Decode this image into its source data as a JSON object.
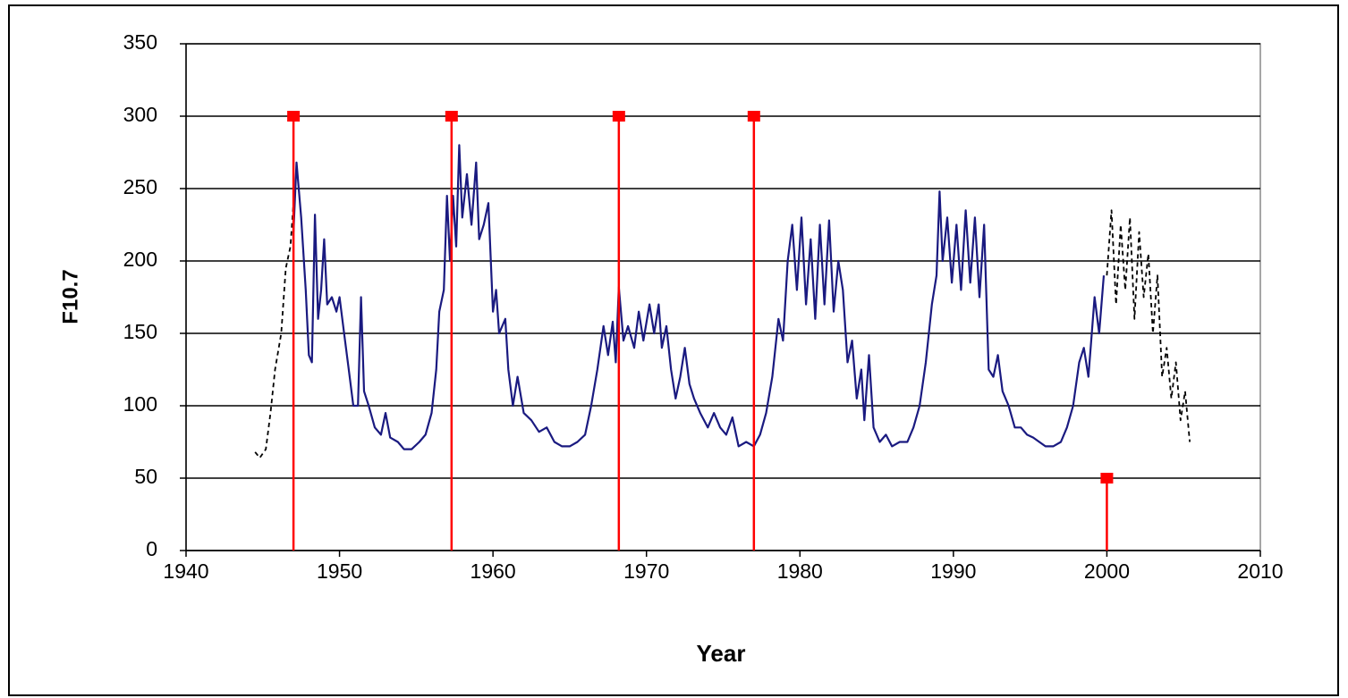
{
  "chart_data": {
    "type": "line",
    "xlabel": "Year",
    "ylabel": "F10.7",
    "xlim": [
      1940,
      2010
    ],
    "xticks": [
      1940,
      1950,
      1960,
      1970,
      1980,
      1990,
      2000,
      2010
    ],
    "ylim": [
      0,
      350
    ],
    "yticks": [
      0,
      50,
      100,
      150,
      200,
      250,
      300,
      350
    ],
    "grid": true,
    "series": [
      {
        "color": "#000000",
        "line_style": "dashed",
        "x": [
          1944.5,
          1944.8,
          1945.2,
          1945.5,
          1945.8,
          1946.2,
          1946.5,
          1946.8,
          1947.0
        ],
        "values": [
          68,
          64,
          70,
          95,
          125,
          150,
          195,
          210,
          240
        ]
      },
      {
        "color": "#1a1a80",
        "line_style": "solid",
        "x": [
          1947.0,
          1947.2,
          1947.5,
          1947.8,
          1948.0,
          1948.2,
          1948.4,
          1948.6,
          1948.8,
          1949.0,
          1949.2,
          1949.5,
          1949.8,
          1950.0,
          1950.3,
          1950.6,
          1950.9,
          1951.2,
          1951.4,
          1951.6,
          1951.9,
          1952.3,
          1952.7,
          1953.0,
          1953.3,
          1953.8,
          1954.2,
          1954.7,
          1955.2,
          1955.6,
          1956.0,
          1956.3,
          1956.5,
          1956.8,
          1957.0,
          1957.2,
          1957.4,
          1957.6,
          1957.8,
          1958.0,
          1958.3,
          1958.6,
          1958.9,
          1959.1,
          1959.4,
          1959.7,
          1960.0,
          1960.2,
          1960.4,
          1960.8,
          1961.0,
          1961.3,
          1961.6,
          1962.0,
          1962.5,
          1963.0,
          1963.5,
          1964.0,
          1964.5,
          1965.0,
          1965.5,
          1966.0,
          1966.4,
          1966.8,
          1967.2,
          1967.5,
          1967.8,
          1968.0,
          1968.2,
          1968.5,
          1968.8,
          1969.2,
          1969.5,
          1969.8,
          1970.2,
          1970.5,
          1970.8,
          1971.0,
          1971.3,
          1971.6,
          1971.9,
          1972.2,
          1972.5,
          1972.8,
          1973.1,
          1973.5,
          1974.0,
          1974.4,
          1974.8,
          1975.2,
          1975.6,
          1976.0,
          1976.5,
          1977.0,
          1977.4,
          1977.8,
          1978.2,
          1978.6,
          1978.9,
          1979.2,
          1979.5,
          1979.8,
          1980.1,
          1980.4,
          1980.7,
          1981.0,
          1981.3,
          1981.6,
          1981.9,
          1982.2,
          1982.5,
          1982.8,
          1983.1,
          1983.4,
          1983.7,
          1984.0,
          1984.2,
          1984.5,
          1984.8,
          1985.2,
          1985.6,
          1986.0,
          1986.5,
          1987.0,
          1987.4,
          1987.8,
          1988.2,
          1988.6,
          1988.9,
          1989.1,
          1989.3,
          1989.6,
          1989.9,
          1990.2,
          1990.5,
          1990.8,
          1991.1,
          1991.4,
          1991.7,
          1992.0,
          1992.3,
          1992.6,
          1992.9,
          1993.2,
          1993.6,
          1994.0,
          1994.4,
          1994.8,
          1995.2,
          1995.6,
          1996.0,
          1996.5,
          1997.0,
          1997.4,
          1997.8,
          1998.2,
          1998.5,
          1998.8,
          1999.2,
          1999.5,
          1999.8
        ],
        "values": [
          220,
          268,
          230,
          180,
          135,
          130,
          232,
          160,
          180,
          215,
          170,
          175,
          165,
          175,
          150,
          125,
          100,
          100,
          175,
          110,
          100,
          85,
          80,
          95,
          78,
          75,
          70,
          70,
          75,
          80,
          95,
          125,
          165,
          180,
          245,
          200,
          245,
          210,
          280,
          230,
          260,
          225,
          268,
          215,
          225,
          240,
          165,
          180,
          150,
          160,
          125,
          100,
          120,
          95,
          90,
          82,
          85,
          75,
          72,
          72,
          75,
          80,
          100,
          125,
          155,
          135,
          158,
          130,
          182,
          145,
          155,
          140,
          165,
          145,
          170,
          150,
          170,
          140,
          155,
          125,
          105,
          120,
          140,
          115,
          105,
          95,
          85,
          95,
          85,
          80,
          92,
          72,
          75,
          72,
          80,
          95,
          120,
          160,
          145,
          200,
          225,
          180,
          230,
          170,
          215,
          160,
          225,
          170,
          228,
          165,
          200,
          180,
          130,
          145,
          105,
          125,
          90,
          135,
          85,
          75,
          80,
          72,
          75,
          75,
          85,
          100,
          130,
          170,
          190,
          248,
          200,
          230,
          185,
          225,
          180,
          235,
          185,
          230,
          175,
          225,
          125,
          120,
          135,
          110,
          100,
          85,
          85,
          80,
          78,
          75,
          72,
          72,
          75,
          85,
          100,
          130,
          140,
          120,
          175,
          150,
          190
        ]
      },
      {
        "color": "#000000",
        "line_style": "dashed",
        "x": [
          2000.0,
          2000.3,
          2000.6,
          2000.9,
          2001.2,
          2001.5,
          2001.8,
          2002.1,
          2002.4,
          2002.7,
          2003.0,
          2003.3,
          2003.6,
          2003.9,
          2004.2,
          2004.5,
          2004.8,
          2005.1,
          2005.4
        ],
        "values": [
          190,
          235,
          170,
          225,
          180,
          230,
          160,
          220,
          175,
          205,
          150,
          190,
          120,
          140,
          105,
          130,
          90,
          110,
          75
        ]
      },
      {
        "color": "#ff0000",
        "line_style": "drop",
        "marker": "square",
        "x": [
          1947.0,
          1957.3,
          1968.2,
          1977.0,
          2000.0
        ],
        "values": [
          300,
          300,
          300,
          300,
          50
        ]
      }
    ]
  }
}
